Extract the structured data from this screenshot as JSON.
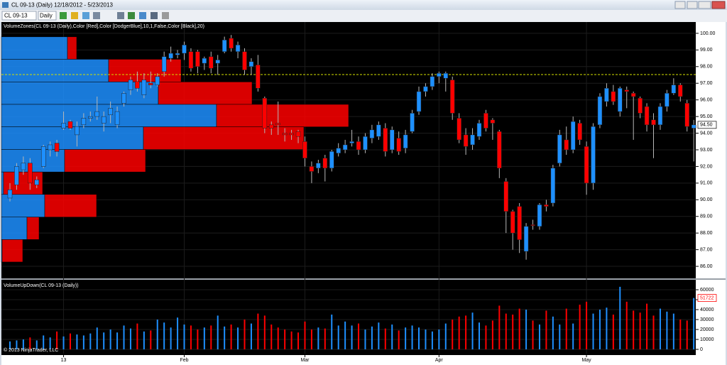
{
  "chart_data": {
    "type": "candlestick",
    "window_title": "CL 09-13 (Daily)  12/18/2012 - 5/23/2013",
    "toolbar": {
      "symbol": "CL 09-13",
      "interval": "Daily"
    },
    "price_label": "VolumeZones(CL 09-13 (Daily),Color [Red],Color [DodgerBlue],10,1,False,Color [Black],20)",
    "volume_label": "VolumeUpDown(CL 09-13 (Daily))",
    "copyright": "© 2013 NinjaTrader, LLC",
    "up_color": "#1e90ff",
    "down_color": "#ff0000",
    "grid": true,
    "xlim": [
      -1.27,
      102.3
    ],
    "xticks": [
      {
        "value": 8,
        "label": "13"
      },
      {
        "value": 26,
        "label": "Feb"
      },
      {
        "value": 44,
        "label": "Mar"
      },
      {
        "value": 64,
        "label": "Apr"
      },
      {
        "value": 86,
        "label": "May"
      }
    ],
    "ylim": [
      85.32,
      100.38
    ],
    "yticks": [
      {
        "value": 86,
        "label": "86.00"
      },
      {
        "value": 87,
        "label": "87.00"
      },
      {
        "value": 88,
        "label": "88.00"
      },
      {
        "value": 89,
        "label": "89.00"
      },
      {
        "value": 90,
        "label": "90.00"
      },
      {
        "value": 91,
        "label": "91.00"
      },
      {
        "value": 92,
        "label": "92.00"
      },
      {
        "value": 93,
        "label": "93.00"
      },
      {
        "value": 94,
        "label": "94.00"
      },
      {
        "value": 95,
        "label": "95.00"
      },
      {
        "value": 96,
        "label": "96.00"
      },
      {
        "value": 97,
        "label": "97.00"
      },
      {
        "value": 98,
        "label": "98.00"
      },
      {
        "value": 99,
        "label": "99.00"
      },
      {
        "value": 100,
        "label": "100.00"
      }
    ],
    "reference_line": 97.52,
    "last_price": {
      "value": 94.5,
      "label": "94.50"
    },
    "ohlc": [
      [
        90.1,
        91.0,
        89.9,
        90.6
      ],
      [
        90.9,
        92.2,
        90.6,
        92.0
      ],
      [
        91.8,
        92.6,
        91.5,
        92.2
      ],
      [
        92.2,
        92.5,
        90.6,
        91.0
      ],
      [
        90.9,
        91.4,
        90.7,
        91.2
      ],
      [
        92.0,
        93.3,
        91.9,
        93.2
      ],
      [
        93.0,
        93.5,
        92.6,
        93.3
      ],
      [
        93.4,
        93.6,
        92.6,
        92.9
      ],
      [
        94.3,
        95.3,
        94.2,
        94.6
      ],
      [
        94.7,
        94.8,
        94.2,
        94.3
      ],
      [
        93.9,
        94.7,
        93.2,
        94.4
      ],
      [
        94.5,
        95.2,
        94.3,
        94.9
      ],
      [
        94.9,
        95.3,
        94.7,
        95.0
      ],
      [
        95.0,
        96.2,
        94.8,
        95.3
      ],
      [
        94.6,
        95.3,
        94.1,
        95.0
      ],
      [
        95.1,
        95.9,
        94.6,
        95.5
      ],
      [
        94.5,
        95.6,
        94.3,
        95.3
      ],
      [
        95.8,
        96.5,
        95.6,
        96.4
      ],
      [
        96.6,
        97.4,
        96.3,
        97.2
      ],
      [
        97.1,
        97.7,
        96.5,
        96.7
      ],
      [
        96.3,
        97.6,
        96.1,
        97.2
      ],
      [
        97.0,
        97.7,
        96.7,
        96.9
      ],
      [
        96.9,
        97.6,
        96.8,
        97.4
      ],
      [
        97.7,
        98.9,
        97.4,
        98.6
      ],
      [
        98.5,
        99.2,
        98.3,
        98.8
      ],
      [
        98.7,
        99.0,
        98.5,
        98.8
      ],
      [
        98.8,
        99.5,
        98.4,
        99.3
      ],
      [
        98.9,
        99.1,
        97.7,
        97.9
      ],
      [
        98.9,
        99.0,
        97.6,
        98.0
      ],
      [
        98.2,
        98.6,
        97.8,
        98.5
      ],
      [
        98.6,
        98.9,
        97.6,
        97.9
      ],
      [
        98.2,
        98.7,
        97.5,
        98.4
      ],
      [
        98.9,
        99.8,
        98.8,
        99.6
      ],
      [
        99.7,
        99.9,
        98.9,
        99.1
      ],
      [
        98.9,
        99.5,
        98.5,
        99.3
      ],
      [
        98.9,
        99.1,
        97.5,
        97.8
      ],
      [
        98.0,
        98.5,
        97.5,
        98.3
      ],
      [
        98.1,
        98.7,
        96.5,
        96.7
      ],
      [
        96.1,
        96.2,
        94.0,
        94.3
      ],
      [
        94.5,
        94.7,
        93.9,
        94.3
      ],
      [
        94.6,
        95.9,
        93.9,
        94.5
      ],
      [
        94.0,
        94.3,
        93.5,
        93.9
      ],
      [
        94.0,
        94.2,
        93.6,
        93.9
      ],
      [
        94.1,
        94.2,
        93.4,
        93.8
      ],
      [
        93.5,
        93.8,
        92.0,
        92.5
      ],
      [
        92.0,
        92.3,
        91.0,
        91.7
      ],
      [
        91.9,
        92.4,
        91.6,
        92.2
      ],
      [
        92.5,
        92.7,
        91.1,
        91.9
      ],
      [
        91.9,
        93.0,
        91.7,
        92.9
      ],
      [
        92.8,
        93.4,
        92.6,
        93.1
      ],
      [
        93.0,
        93.6,
        92.8,
        93.3
      ],
      [
        93.4,
        94.2,
        93.2,
        93.5
      ],
      [
        93.5,
        93.8,
        92.7,
        93.0
      ],
      [
        93.0,
        94.0,
        92.8,
        93.8
      ],
      [
        93.7,
        94.5,
        93.4,
        94.2
      ],
      [
        93.8,
        94.7,
        93.6,
        94.5
      ],
      [
        94.3,
        94.6,
        92.6,
        92.9
      ],
      [
        93.0,
        94.4,
        92.8,
        94.2
      ],
      [
        93.7,
        94.1,
        92.7,
        92.9
      ],
      [
        93.1,
        94.2,
        92.8,
        93.9
      ],
      [
        94.1,
        95.4,
        94.0,
        95.2
      ],
      [
        95.3,
        96.8,
        95.1,
        96.5
      ],
      [
        96.5,
        97.0,
        96.2,
        96.8
      ],
      [
        96.8,
        97.6,
        96.6,
        97.4
      ],
      [
        97.4,
        97.7,
        97.0,
        97.6
      ],
      [
        97.3,
        97.7,
        96.5,
        97.6
      ],
      [
        97.2,
        97.4,
        94.8,
        95.2
      ],
      [
        94.9,
        95.2,
        93.4,
        93.6
      ],
      [
        93.9,
        94.3,
        92.7,
        93.2
      ],
      [
        93.3,
        94.3,
        93.0,
        93.9
      ],
      [
        93.8,
        94.8,
        93.6,
        94.6
      ],
      [
        95.2,
        95.4,
        94.1,
        94.3
      ],
      [
        94.8,
        94.9,
        93.6,
        94.6
      ],
      [
        94.1,
        94.2,
        91.3,
        91.9
      ],
      [
        91.1,
        91.3,
        88.0,
        89.3
      ],
      [
        89.3,
        89.4,
        87.0,
        88.0
      ],
      [
        89.6,
        89.8,
        86.8,
        87.6
      ],
      [
        86.9,
        88.6,
        86.4,
        88.4
      ],
      [
        88.5,
        88.8,
        88.2,
        88.45
      ],
      [
        88.4,
        89.8,
        88.2,
        89.7
      ],
      [
        89.7,
        90.0,
        89.3,
        89.6
      ],
      [
        89.8,
        92.1,
        89.6,
        91.9
      ],
      [
        92.2,
        94.2,
        92.0,
        93.9
      ],
      [
        93.6,
        94.4,
        92.7,
        93.0
      ],
      [
        93.0,
        95.0,
        92.8,
        94.7
      ],
      [
        94.6,
        94.8,
        93.3,
        93.6
      ],
      [
        93.2,
        93.5,
        90.3,
        91.0
      ],
      [
        91.0,
        94.6,
        90.6,
        94.4
      ],
      [
        94.5,
        96.4,
        94.3,
        96.2
      ],
      [
        95.9,
        97.0,
        95.6,
        96.7
      ],
      [
        96.5,
        96.9,
        95.7,
        95.9
      ],
      [
        95.3,
        96.8,
        95.0,
        96.7
      ],
      [
        96.6,
        96.8,
        95.5,
        96.5
      ],
      [
        96.4,
        96.5,
        93.6,
        96.2
      ],
      [
        96.1,
        96.2,
        94.9,
        95.2
      ],
      [
        95.6,
        95.8,
        94.1,
        94.5
      ],
      [
        94.8,
        95.2,
        92.5,
        94.5
      ],
      [
        94.5,
        95.8,
        94.2,
        95.6
      ],
      [
        95.6,
        96.6,
        95.3,
        96.4
      ],
      [
        96.4,
        97.3,
        96.3,
        96.9
      ],
      [
        96.9,
        97.0,
        95.9,
        96.2
      ],
      [
        95.8,
        96.0,
        94.1,
        94.4
      ],
      [
        94.3,
        94.8,
        92.3,
        94.5
      ]
    ],
    "volume": {
      "ylim": [
        -4300,
        68600
      ],
      "yticks": [
        0,
        10000,
        20000,
        30000,
        40000,
        50000,
        60000
      ],
      "values": [
        8000,
        9000,
        10000,
        12000,
        9000,
        14000,
        12000,
        18000,
        13000,
        16000,
        15000,
        14000,
        16000,
        22000,
        17000,
        20000,
        17000,
        24000,
        21000,
        26000,
        18000,
        19000,
        30000,
        27000,
        22000,
        32000,
        25000,
        24000,
        20000,
        22000,
        24000,
        34000,
        23000,
        25000,
        22000,
        30000,
        26000,
        36000,
        34000,
        25000,
        22000,
        20000,
        18000,
        17000,
        28000,
        20000,
        22000,
        21000,
        35000,
        24000,
        28000,
        24000,
        26000,
        20000,
        23000,
        27000,
        21000,
        25000,
        19000,
        22000,
        24000,
        22000,
        20000,
        18000,
        20000,
        26000,
        30000,
        33000,
        34000,
        37000,
        27000,
        24000,
        29000,
        44000,
        36000,
        35000,
        41000,
        40000,
        29000,
        25000,
        39000,
        33000,
        25000,
        41000,
        26000,
        45000,
        48000,
        36000,
        40000,
        42000,
        35000,
        63000,
        48000,
        39000,
        37000,
        46000,
        34000,
        41000,
        38000,
        36000,
        30000,
        29000,
        51722
      ]
    },
    "volume_zones": [
      {
        "high": 99.79,
        "low": 98.44,
        "up": 93000,
        "down": 13000
      },
      {
        "high": 98.44,
        "low": 97.08,
        "up": 151000,
        "down": 102000
      },
      {
        "high": 97.08,
        "low": 95.73,
        "up": 221000,
        "down": 132000
      },
      {
        "high": 95.73,
        "low": 94.38,
        "up": 303000,
        "down": 186000
      },
      {
        "high": 94.38,
        "low": 93.02,
        "up": 200000,
        "down": 226000
      },
      {
        "high": 93.02,
        "low": 91.67,
        "up": 89000,
        "down": 114000
      },
      {
        "high": 91.67,
        "low": 90.32,
        "up": 3000,
        "down": 55000
      },
      {
        "high": 90.32,
        "low": 88.96,
        "up": 61000,
        "down": 73000
      },
      {
        "high": 88.96,
        "low": 87.61,
        "up": 36000,
        "down": 17000
      },
      {
        "high": 87.61,
        "low": 86.26,
        "up": 1000,
        "down": 29000
      }
    ]
  }
}
